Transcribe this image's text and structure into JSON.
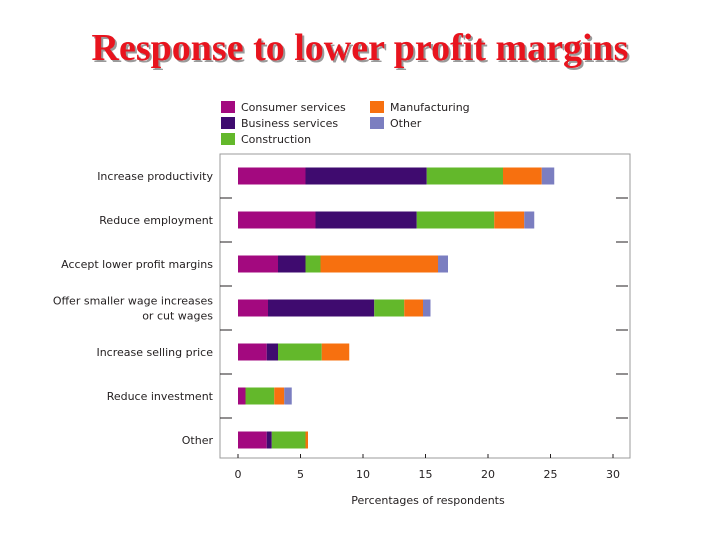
{
  "page_title": "Response to lower profit margins",
  "chart_data": {
    "type": "bar",
    "orientation": "horizontal",
    "stacked": true,
    "categories": [
      [
        "Increase productivity"
      ],
      [
        "Reduce employment"
      ],
      [
        "Accept lower profit margins"
      ],
      [
        "Offer smaller wage increases",
        "or cut wages"
      ],
      [
        "Increase selling price"
      ],
      [
        "Reduce investment"
      ],
      [
        "Other"
      ]
    ],
    "series": [
      {
        "name": "Consumer services",
        "color": "#a3097f",
        "values": [
          5.4,
          6.2,
          3.2,
          2.4,
          2.3,
          0.6,
          2.3
        ]
      },
      {
        "name": "Business services",
        "color": "#3f0b6f",
        "values": [
          9.7,
          8.1,
          2.2,
          8.5,
          0.9,
          0.0,
          0.4
        ]
      },
      {
        "name": "Construction",
        "color": "#63b82b",
        "values": [
          6.1,
          6.2,
          1.2,
          2.4,
          3.5,
          2.3,
          2.7
        ]
      },
      {
        "name": "Manufacturing",
        "color": "#f7700f",
        "values": [
          3.1,
          2.4,
          9.4,
          1.5,
          2.2,
          0.8,
          0.2
        ]
      },
      {
        "name": "Other",
        "color": "#7b7ec0",
        "values": [
          1.0,
          0.8,
          0.8,
          0.6,
          0.0,
          0.6,
          0.0
        ]
      }
    ],
    "xlim": [
      0,
      30
    ],
    "xticks": [
      "0",
      "5",
      "10",
      "15",
      "20",
      "25",
      "30"
    ],
    "xlabel": "Percentages of respondents",
    "legend_position": "top",
    "grid": false
  }
}
